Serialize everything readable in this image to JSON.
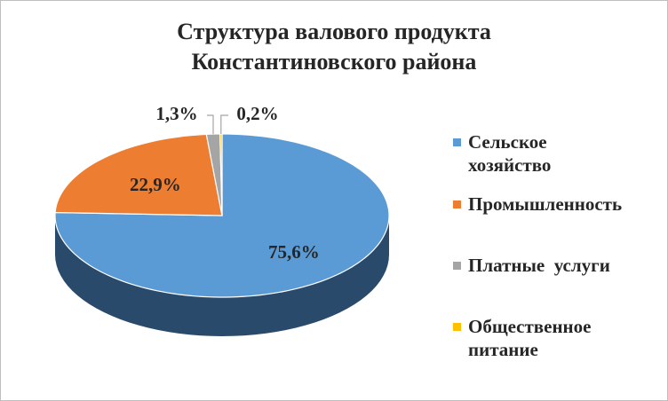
{
  "chart_data": {
    "type": "pie",
    "title_lines": [
      "Структура валового продукта",
      "Константиновского района"
    ],
    "slices": [
      {
        "name": "Сельское хозяйство",
        "value": 75.6,
        "label": "75,6%",
        "color": "#5b9bd5",
        "side": "#2a4a6b"
      },
      {
        "name": "Промышленность",
        "value": 22.9,
        "label": "22,9%",
        "color": "#ed7d31",
        "side": "#8a4519"
      },
      {
        "name": "Платные услуги",
        "value": 1.3,
        "label": "1,3%",
        "color": "#a5a5a5",
        "side": "#5e5e5e"
      },
      {
        "name": "Общественное питание",
        "value": 0.2,
        "label": "0,2%",
        "color": "#ffc000",
        "side": "#8a6800"
      }
    ],
    "legend": [
      {
        "lines": [
          "Сельское",
          "хозяйство"
        ],
        "color": "#5b9bd5"
      },
      {
        "lines": [
          "Промышленность"
        ],
        "color": "#ed7d31"
      },
      {
        "lines": [
          "Платные  услуги"
        ],
        "color": "#a5a5a5"
      },
      {
        "lines": [
          "Общественное",
          "питание"
        ],
        "color": "#ffc000"
      }
    ],
    "legend_position": "right"
  }
}
